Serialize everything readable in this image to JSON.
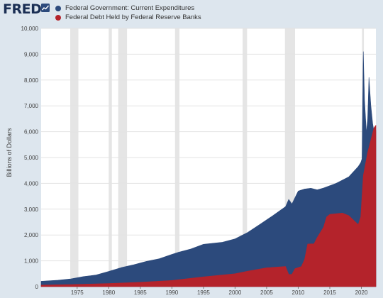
{
  "brand": {
    "logo_text": "FRED"
  },
  "colors": {
    "page_bg": "#dde6ee",
    "plot_bg": "#ffffff",
    "series_1": "#2c4a7c",
    "series_2": "#b4232b",
    "recession": "#e5e5e5"
  },
  "chart_data": {
    "type": "area",
    "ylabel": "Billions of Dollars",
    "xlim": [
      1969.3,
      2022.3
    ],
    "ylim": [
      0,
      10000
    ],
    "grid": true,
    "legend_position": "top-left",
    "y_ticks": [
      0,
      1000,
      2000,
      3000,
      4000,
      5000,
      6000,
      7000,
      8000,
      9000,
      10000
    ],
    "y_tick_labels": [
      "0",
      "1,000",
      "2,000",
      "3,000",
      "4,000",
      "5,000",
      "6,000",
      "7,000",
      "8,000",
      "9,000",
      "10,000"
    ],
    "x_ticks": [
      1975,
      1980,
      1985,
      1990,
      1995,
      2000,
      2005,
      2010,
      2015,
      2020
    ],
    "x_tick_labels": [
      "1975",
      "1980",
      "1985",
      "1990",
      "1995",
      "2000",
      "2005",
      "2010",
      "2015",
      "2020"
    ],
    "recessions": [
      [
        1973.9,
        1975.2
      ],
      [
        1980.0,
        1980.5
      ],
      [
        1981.5,
        1982.9
      ],
      [
        1990.5,
        1991.2
      ],
      [
        2001.2,
        2001.9
      ],
      [
        2007.9,
        2009.5
      ],
      [
        2020.1,
        2020.4
      ]
    ],
    "series": [
      {
        "name": "Federal Government: Current Expenditures",
        "color": "#2c4a7c",
        "x": [
          1969.3,
          1972,
          1974,
          1976,
          1978,
          1980,
          1982,
          1984,
          1986,
          1988,
          1990,
          1991,
          1993,
          1995,
          1998,
          2000,
          2002,
          2004,
          2006,
          2008,
          2008.5,
          2009,
          2009.5,
          2010,
          2011,
          2012,
          2013,
          2014,
          2016,
          2018,
          2019.5,
          2019.9,
          2020.1,
          2020.3,
          2020.5,
          2020.8,
          2021.0,
          2021.2,
          2021.5,
          2021.8,
          2022.0,
          2022.3
        ],
        "values": [
          210,
          250,
          300,
          390,
          450,
          590,
          740,
          850,
          980,
          1080,
          1250,
          1330,
          1460,
          1640,
          1720,
          1850,
          2100,
          2420,
          2750,
          3100,
          3380,
          3200,
          3450,
          3700,
          3780,
          3810,
          3750,
          3820,
          4000,
          4250,
          4650,
          4800,
          4950,
          9100,
          7200,
          5950,
          6500,
          8100,
          7000,
          6300,
          6000,
          6050
        ]
      },
      {
        "name": "Federal Debt Held by Federal Reserve Banks",
        "color": "#b4232b",
        "x": [
          1969.3,
          1974,
          1980,
          1985,
          1990,
          1995,
          2000,
          2002,
          2005,
          2008,
          2008.5,
          2009,
          2009.5,
          2010.5,
          2011,
          2011.5,
          2012.5,
          2013,
          2014,
          2014.5,
          2015,
          2017,
          2018,
          2019.5,
          2019.9,
          2020.3,
          2021,
          2022,
          2022.3
        ],
        "values": [
          60,
          80,
          120,
          170,
          240,
          380,
          500,
          600,
          730,
          780,
          470,
          480,
          700,
          780,
          1050,
          1650,
          1660,
          1900,
          2300,
          2700,
          2800,
          2850,
          2750,
          2400,
          2700,
          4300,
          5200,
          6150,
          6250
        ]
      }
    ]
  }
}
